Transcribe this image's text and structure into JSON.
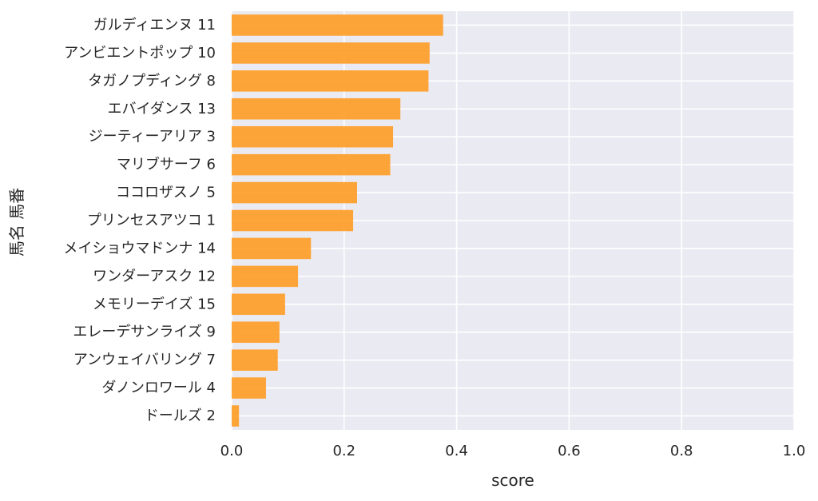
{
  "chart_data": {
    "type": "bar",
    "orientation": "horizontal",
    "xlabel": "score",
    "ylabel": "馬名 馬番",
    "xlim": [
      0.0,
      1.0
    ],
    "xticks": [
      "0.0",
      "0.2",
      "0.4",
      "0.6",
      "0.8",
      "1.0"
    ],
    "grid": true,
    "bar_color": "#FF9A1F",
    "background_color": "#EAEAF2",
    "categories": [
      "ガルディエンヌ 11",
      "アンビエントポップ 10",
      "タガノプディング 8",
      "エバイダンス 13",
      "ジーティーアリア 3",
      "マリブサーフ 6",
      "ココロザスノ 5",
      "プリンセスアツコ 1",
      "メイショウマドンナ 14",
      "ワンダーアスク 12",
      "メモリーデイズ 15",
      "エレーデサンライズ 9",
      "アンウェイバリング 7",
      "ダノンロワール 4",
      "ドールズ 2"
    ],
    "values": [
      0.376,
      0.352,
      0.35,
      0.3,
      0.287,
      0.282,
      0.223,
      0.216,
      0.141,
      0.118,
      0.095,
      0.085,
      0.082,
      0.061,
      0.013
    ]
  }
}
